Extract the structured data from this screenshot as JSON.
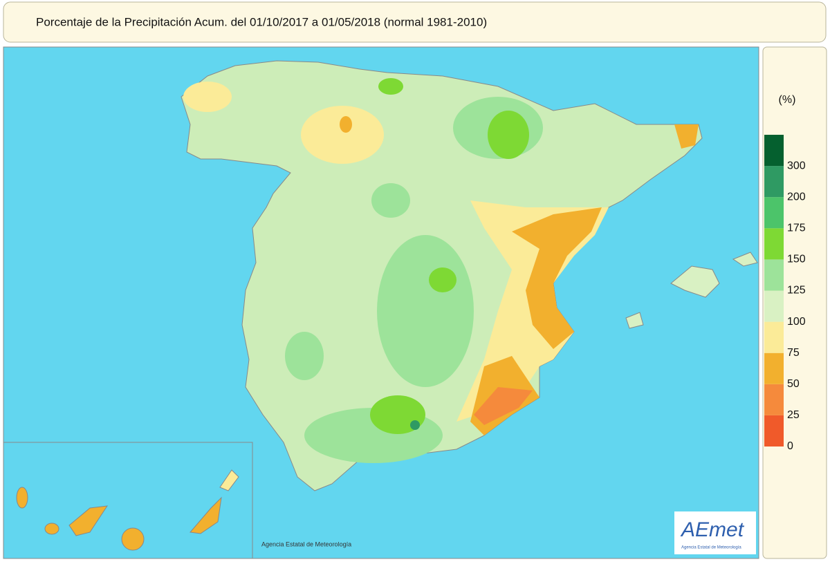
{
  "header": {
    "title": "Porcentaje de la Precipitación Acum. del 01/10/2017 a  01/05/2018  (normal 1981-2010)"
  },
  "legend": {
    "unit": "(%)",
    "ticks": [
      0,
      25,
      50,
      75,
      100,
      125,
      150,
      175,
      200,
      300
    ],
    "colors": [
      "#f05a2a",
      "#f58a3c",
      "#f2b02e",
      "#fbeb98",
      "#d9f1c3",
      "#9de39a",
      "#7ed934",
      "#4cc46a",
      "#2f9a63",
      "#05602f"
    ]
  },
  "credit": "Agencia Estatal de Meteorología",
  "logo": {
    "name": "AEmet",
    "subtitle": "Agencia Estatal de Meteorología"
  }
}
